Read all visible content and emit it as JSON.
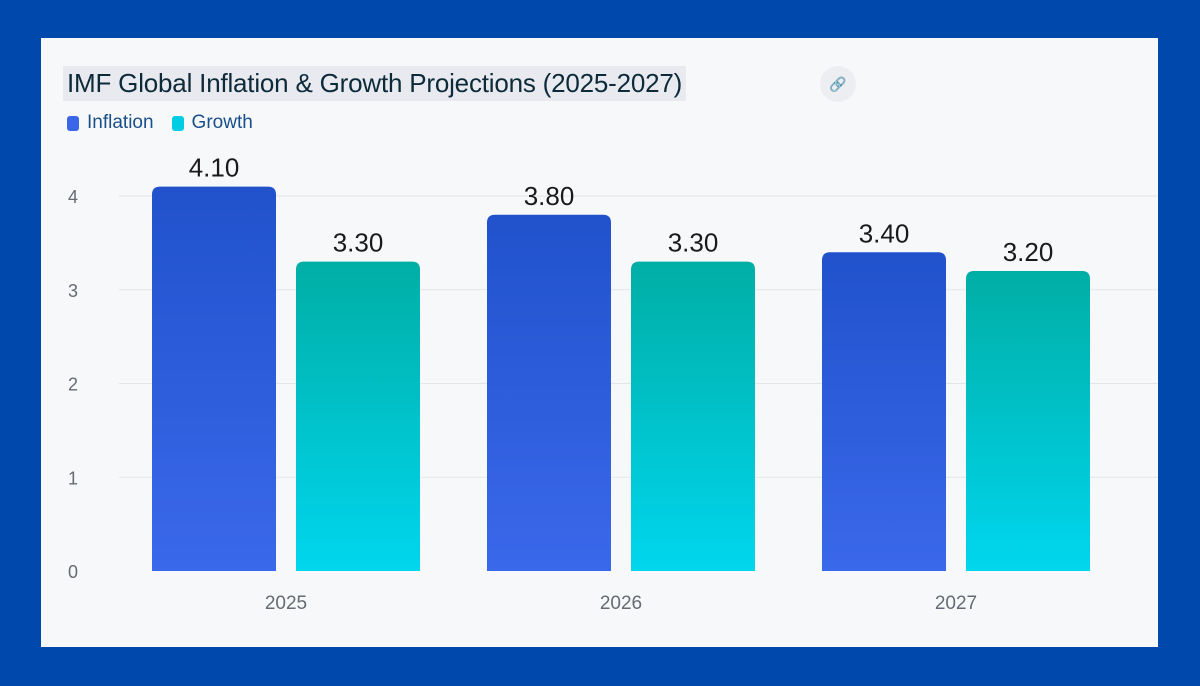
{
  "chart_data": {
    "type": "bar",
    "title": "IMF Global Inflation & Growth Projections (2025-2027)",
    "categories": [
      "2025",
      "2026",
      "2027"
    ],
    "series": [
      {
        "name": "Inflation",
        "values": [
          4.1,
          3.8,
          3.4
        ],
        "color": "#2f5fe0"
      },
      {
        "name": "Growth",
        "values": [
          3.3,
          3.3,
          3.2
        ],
        "color": "#00c4d8"
      }
    ],
    "ylim": [
      0,
      4.2
    ],
    "yticks": [
      "0",
      "1",
      "2",
      "3",
      "4"
    ],
    "data_labels": [
      [
        "4.10",
        "3.80",
        "3.40"
      ],
      [
        "3.30",
        "3.30",
        "3.20"
      ]
    ],
    "grid": true,
    "legend": "top-left",
    "xlabel": "",
    "ylabel": ""
  },
  "icons": {
    "title_action": "link-icon"
  },
  "colors": {
    "background": "#0048ac",
    "card": "#f7f8fa"
  }
}
